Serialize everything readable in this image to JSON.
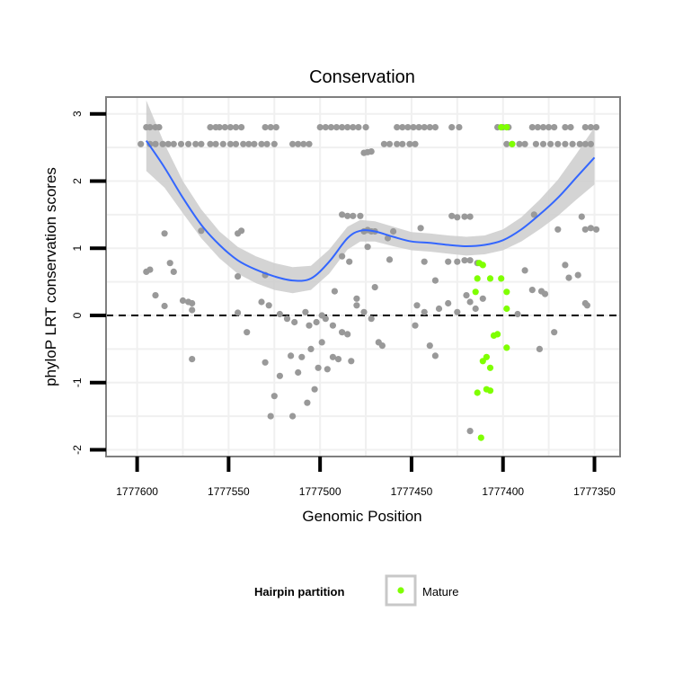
{
  "chart_data": {
    "type": "scatter",
    "title": "Conservation",
    "xlabel": "Genomic Position",
    "ylabel": "phyloP LRT conservation scores",
    "x_reversed": true,
    "xlim": [
      1777617,
      1777336
    ],
    "ylim": [
      -2.1,
      3.25
    ],
    "x_ticks": [
      1777600,
      1777550,
      1777500,
      1777450,
      1777400,
      1777350
    ],
    "x_tick_labels": [
      "1777600",
      "1777550",
      "1777500",
      "1777450",
      "1777400",
      "1777350"
    ],
    "y_ticks": [
      -2,
      -1,
      0,
      1,
      2,
      3
    ],
    "y_tick_labels": [
      "-2",
      "-1",
      "0",
      "1",
      "2",
      "3"
    ],
    "grid": true,
    "reference_line": {
      "y": 0,
      "style": "dashed",
      "color": "#000000"
    },
    "colors": {
      "points": "#999999",
      "mature": "#7fff00",
      "smooth": "#3366ff",
      "ribbon": "#cccccc",
      "panel_border": "#7f7f7f",
      "grid": "#f0f0f0"
    },
    "smooth": {
      "x": [
        1777595,
        1777585,
        1777575,
        1777565,
        1777555,
        1777545,
        1777535,
        1777525,
        1777515,
        1777505,
        1777495,
        1777485,
        1777478,
        1777470,
        1777460,
        1777450,
        1777440,
        1777430,
        1777420,
        1777410,
        1777400,
        1777390,
        1777380,
        1777370,
        1777360,
        1777350
      ],
      "y": [
        2.6,
        2.2,
        1.75,
        1.35,
        1.05,
        0.82,
        0.68,
        0.58,
        0.52,
        0.55,
        0.8,
        1.15,
        1.26,
        1.25,
        1.17,
        1.1,
        1.08,
        1.05,
        1.03,
        1.05,
        1.12,
        1.28,
        1.5,
        1.75,
        2.05,
        2.35
      ],
      "lower": [
        2.15,
        1.9,
        1.52,
        1.15,
        0.85,
        0.62,
        0.48,
        0.38,
        0.33,
        0.38,
        0.62,
        0.98,
        1.1,
        1.1,
        1.03,
        0.97,
        0.95,
        0.92,
        0.89,
        0.91,
        0.97,
        1.1,
        1.28,
        1.48,
        1.72,
        1.95
      ],
      "upper": [
        3.2,
        2.55,
        2.0,
        1.58,
        1.25,
        1.02,
        0.88,
        0.78,
        0.72,
        0.74,
        0.98,
        1.32,
        1.42,
        1.4,
        1.32,
        1.24,
        1.22,
        1.19,
        1.17,
        1.19,
        1.28,
        1.46,
        1.72,
        2.02,
        2.4,
        2.8
      ]
    },
    "series": [
      {
        "name": "",
        "color": "#999999",
        "points": [
          [
            1777595,
            2.8
          ],
          [
            1777593,
            2.8
          ],
          [
            1777590,
            2.8
          ],
          [
            1777588,
            2.8
          ],
          [
            1777560,
            2.8
          ],
          [
            1777557,
            2.8
          ],
          [
            1777555,
            2.8
          ],
          [
            1777552,
            2.8
          ],
          [
            1777549,
            2.8
          ],
          [
            1777546,
            2.8
          ],
          [
            1777543,
            2.8
          ],
          [
            1777530,
            2.8
          ],
          [
            1777527,
            2.8
          ],
          [
            1777524,
            2.8
          ],
          [
            1777500,
            2.8
          ],
          [
            1777497,
            2.8
          ],
          [
            1777494,
            2.8
          ],
          [
            1777491,
            2.8
          ],
          [
            1777488,
            2.8
          ],
          [
            1777485,
            2.8
          ],
          [
            1777482,
            2.8
          ],
          [
            1777479,
            2.8
          ],
          [
            1777475,
            2.8
          ],
          [
            1777458,
            2.8
          ],
          [
            1777455,
            2.8
          ],
          [
            1777452,
            2.8
          ],
          [
            1777449,
            2.8
          ],
          [
            1777446,
            2.8
          ],
          [
            1777443,
            2.8
          ],
          [
            1777440,
            2.8
          ],
          [
            1777437,
            2.8
          ],
          [
            1777428,
            2.8
          ],
          [
            1777424,
            2.8
          ],
          [
            1777403,
            2.8
          ],
          [
            1777400,
            2.8
          ],
          [
            1777397,
            2.8
          ],
          [
            1777384,
            2.8
          ],
          [
            1777381,
            2.8
          ],
          [
            1777378,
            2.8
          ],
          [
            1777375,
            2.8
          ],
          [
            1777372,
            2.8
          ],
          [
            1777366,
            2.8
          ],
          [
            1777363,
            2.8
          ],
          [
            1777355,
            2.8
          ],
          [
            1777352,
            2.8
          ],
          [
            1777349,
            2.8
          ],
          [
            1777598,
            2.55
          ],
          [
            1777593,
            2.55
          ],
          [
            1777590,
            2.55
          ],
          [
            1777586,
            2.55
          ],
          [
            1777583,
            2.55
          ],
          [
            1777580,
            2.55
          ],
          [
            1777576,
            2.55
          ],
          [
            1777572,
            2.55
          ],
          [
            1777568,
            2.55
          ],
          [
            1777565,
            2.55
          ],
          [
            1777560,
            2.55
          ],
          [
            1777557,
            2.55
          ],
          [
            1777553,
            2.55
          ],
          [
            1777549,
            2.55
          ],
          [
            1777546,
            2.55
          ],
          [
            1777542,
            2.55
          ],
          [
            1777539,
            2.55
          ],
          [
            1777536,
            2.55
          ],
          [
            1777532,
            2.55
          ],
          [
            1777529,
            2.55
          ],
          [
            1777525,
            2.55
          ],
          [
            1777515,
            2.55
          ],
          [
            1777512,
            2.55
          ],
          [
            1777509,
            2.55
          ],
          [
            1777506,
            2.55
          ],
          [
            1777465,
            2.55
          ],
          [
            1777462,
            2.55
          ],
          [
            1777458,
            2.55
          ],
          [
            1777455,
            2.55
          ],
          [
            1777451,
            2.55
          ],
          [
            1777448,
            2.55
          ],
          [
            1777398,
            2.55
          ],
          [
            1777395,
            2.55
          ],
          [
            1777391,
            2.55
          ],
          [
            1777388,
            2.55
          ],
          [
            1777382,
            2.55
          ],
          [
            1777378,
            2.55
          ],
          [
            1777374,
            2.55
          ],
          [
            1777370,
            2.55
          ],
          [
            1777366,
            2.55
          ],
          [
            1777362,
            2.55
          ],
          [
            1777358,
            2.55
          ],
          [
            1777355,
            2.55
          ],
          [
            1777352,
            2.55
          ],
          [
            1777476,
            2.42
          ],
          [
            1777474,
            2.43
          ],
          [
            1777472,
            2.44
          ],
          [
            1777585,
            1.22
          ],
          [
            1777565,
            1.26
          ],
          [
            1777545,
            1.22
          ],
          [
            1777543,
            1.26
          ],
          [
            1777488,
            1.5
          ],
          [
            1777485,
            1.48
          ],
          [
            1777482,
            1.48
          ],
          [
            1777478,
            1.48
          ],
          [
            1777476,
            1.25
          ],
          [
            1777474,
            1.27
          ],
          [
            1777472,
            1.25
          ],
          [
            1777470,
            1.25
          ],
          [
            1777463,
            1.15
          ],
          [
            1777460,
            1.25
          ],
          [
            1777445,
            1.3
          ],
          [
            1777428,
            1.48
          ],
          [
            1777425,
            1.46
          ],
          [
            1777421,
            1.47
          ],
          [
            1777418,
            1.47
          ],
          [
            1777383,
            1.5
          ],
          [
            1777370,
            1.28
          ],
          [
            1777352,
            1.3
          ],
          [
            1777357,
            1.47
          ],
          [
            1777355,
            1.28
          ],
          [
            1777349,
            1.28
          ],
          [
            1777595,
            0.65
          ],
          [
            1777593,
            0.68
          ],
          [
            1777582,
            0.78
          ],
          [
            1777580,
            0.65
          ],
          [
            1777575,
            0.22
          ],
          [
            1777572,
            0.2
          ],
          [
            1777570,
            0.18
          ],
          [
            1777545,
            0.58
          ],
          [
            1777530,
            0.6
          ],
          [
            1777492,
            0.36
          ],
          [
            1777488,
            0.88
          ],
          [
            1777484,
            0.8
          ],
          [
            1777480,
            0.25
          ],
          [
            1777474,
            1.02
          ],
          [
            1777470,
            0.42
          ],
          [
            1777462,
            0.83
          ],
          [
            1777443,
            0.8
          ],
          [
            1777437,
            0.52
          ],
          [
            1777430,
            0.8
          ],
          [
            1777425,
            0.8
          ],
          [
            1777421,
            0.82
          ],
          [
            1777418,
            0.82
          ],
          [
            1777414,
            0.78
          ],
          [
            1777388,
            0.67
          ],
          [
            1777384,
            0.38
          ],
          [
            1777379,
            0.36
          ],
          [
            1777377,
            0.32
          ],
          [
            1777366,
            0.75
          ],
          [
            1777364,
            0.56
          ],
          [
            1777359,
            0.6
          ],
          [
            1777354,
            0.15
          ],
          [
            1777590,
            0.3
          ],
          [
            1777585,
            0.14
          ],
          [
            1777570,
            0.08
          ],
          [
            1777545,
            0.04
          ],
          [
            1777532,
            0.2
          ],
          [
            1777528,
            0.15
          ],
          [
            1777522,
            0.02
          ],
          [
            1777518,
            -0.05
          ],
          [
            1777514,
            -0.1
          ],
          [
            1777508,
            0.05
          ],
          [
            1777506,
            -0.15
          ],
          [
            1777502,
            -0.1
          ],
          [
            1777499,
            0.0
          ],
          [
            1777497,
            -0.05
          ],
          [
            1777493,
            -0.15
          ],
          [
            1777488,
            -0.25
          ],
          [
            1777480,
            0.15
          ],
          [
            1777476,
            0.05
          ],
          [
            1777472,
            -0.05
          ],
          [
            1777468,
            -0.4
          ],
          [
            1777466,
            -0.45
          ],
          [
            1777447,
            0.15
          ],
          [
            1777443,
            0.05
          ],
          [
            1777435,
            0.1
          ],
          [
            1777430,
            0.18
          ],
          [
            1777425,
            0.05
          ],
          [
            1777420,
            0.3
          ],
          [
            1777418,
            0.2
          ],
          [
            1777415,
            0.1
          ],
          [
            1777411,
            0.25
          ],
          [
            1777392,
            0.02
          ],
          [
            1777380,
            -0.5
          ],
          [
            1777372,
            -0.25
          ],
          [
            1777355,
            0.18
          ],
          [
            1777570,
            -0.65
          ],
          [
            1777540,
            -0.25
          ],
          [
            1777530,
            -0.7
          ],
          [
            1777525,
            -1.2
          ],
          [
            1777522,
            -0.9
          ],
          [
            1777516,
            -0.6
          ],
          [
            1777512,
            -0.85
          ],
          [
            1777510,
            -0.62
          ],
          [
            1777507,
            -1.3
          ],
          [
            1777505,
            -0.5
          ],
          [
            1777503,
            -1.1
          ],
          [
            1777501,
            -0.78
          ],
          [
            1777499,
            -0.4
          ],
          [
            1777496,
            -0.8
          ],
          [
            1777493,
            -0.62
          ],
          [
            1777490,
            -0.65
          ],
          [
            1777485,
            -0.28
          ],
          [
            1777483,
            -0.68
          ],
          [
            1777448,
            -0.15
          ],
          [
            1777440,
            -0.45
          ],
          [
            1777437,
            -0.6
          ],
          [
            1777527,
            -1.5
          ],
          [
            1777515,
            -1.5
          ],
          [
            1777418,
            -1.72
          ]
        ]
      },
      {
        "name": "Mature",
        "color": "#7fff00",
        "points": [
          [
            1777401,
            2.8
          ],
          [
            1777398,
            2.8
          ],
          [
            1777395,
            2.55
          ],
          [
            1777413,
            0.78
          ],
          [
            1777411,
            0.75
          ],
          [
            1777407,
            0.55
          ],
          [
            1777401,
            0.55
          ],
          [
            1777398,
            0.35
          ],
          [
            1777414,
            0.55
          ],
          [
            1777415,
            0.35
          ],
          [
            1777398,
            0.1
          ],
          [
            1777403,
            -0.28
          ],
          [
            1777405,
            -0.3
          ],
          [
            1777398,
            -0.48
          ],
          [
            1777409,
            -0.62
          ],
          [
            1777407,
            -0.78
          ],
          [
            1777411,
            -0.68
          ],
          [
            1777414,
            -1.15
          ],
          [
            1777409,
            -1.1
          ],
          [
            1777407,
            -1.12
          ],
          [
            1777412,
            -1.82
          ]
        ]
      }
    ]
  },
  "legend": {
    "title": "Hairpin partition",
    "items": [
      {
        "label": "Mature",
        "color": "#7fff00"
      }
    ]
  }
}
